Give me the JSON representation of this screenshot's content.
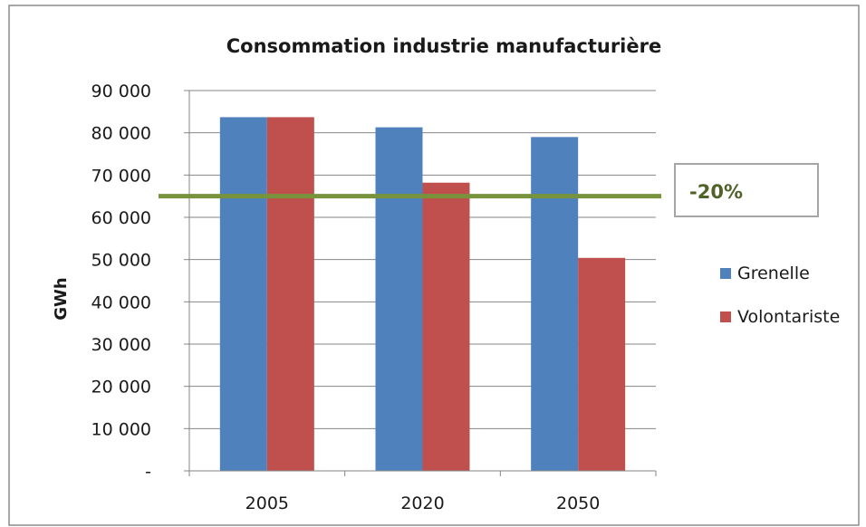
{
  "chart_data": {
    "type": "bar",
    "title": "Consommation industrie manufacturière",
    "xlabel": "",
    "ylabel": "GWh",
    "categories": [
      "2005",
      "2020",
      "2050"
    ],
    "series": [
      {
        "name": "Grenelle",
        "values": [
          83700,
          81300,
          79000
        ],
        "color": "#4f81bd"
      },
      {
        "name": "Volontariste",
        "values": [
          83700,
          68200,
          50400
        ],
        "color": "#c0504d"
      }
    ],
    "ylim": [
      0,
      90000
    ],
    "yticks": [
      0,
      10000,
      20000,
      30000,
      40000,
      50000,
      60000,
      70000,
      80000,
      90000
    ],
    "ytick_labels": [
      "-",
      "10 000",
      "20 000",
      "30 000",
      "40 000",
      "50 000",
      "60 000",
      "70 000",
      "80 000",
      "90 000"
    ],
    "grid": true,
    "legend_position": "right",
    "reference_line": {
      "value": 65000,
      "color": "#77933c"
    },
    "annotation": {
      "text": "-20%",
      "color": "#4f6228"
    }
  }
}
